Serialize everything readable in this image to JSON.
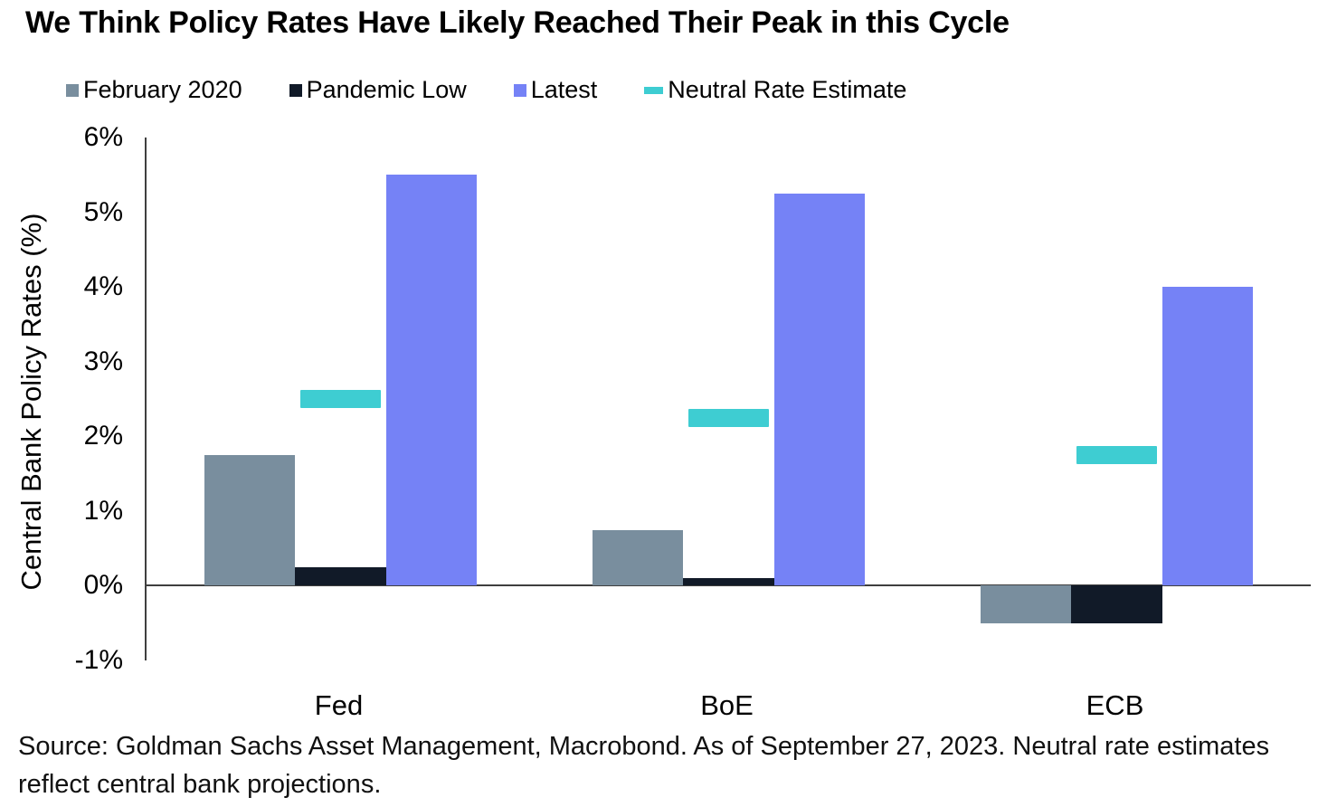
{
  "title": "We Think Policy Rates Have Likely Reached Their Peak in this Cycle",
  "source_note": "Source: Goldman Sachs Asset Management, Macrobond. As of September 27, 2023. Neutral rate estimates reflect central bank projections.",
  "colors": {
    "february_2020": "#798E9E",
    "pandemic_low": "#111A28",
    "latest": "#7582F6",
    "neutral_rate_estimate": "#3ECDD2",
    "axis": "#3f3f3f",
    "text": "#000000"
  },
  "chart_data": {
    "type": "bar",
    "categories": [
      "Fed",
      "BoE",
      "ECB"
    ],
    "series": [
      {
        "name": "February 2020",
        "render": "bar",
        "marker": "square",
        "color": "#798E9E",
        "values": [
          1.75,
          0.75,
          -0.5
        ]
      },
      {
        "name": "Pandemic Low",
        "render": "bar",
        "marker": "square",
        "color": "#111A28",
        "values": [
          0.25,
          0.1,
          -0.5
        ]
      },
      {
        "name": "Latest",
        "render": "bar",
        "marker": "square",
        "color": "#7582F6",
        "values": [
          5.5,
          5.25,
          4.0
        ]
      },
      {
        "name": "Neutral Rate Estimate",
        "render": "dash",
        "marker": "dash",
        "color": "#3ECDD2",
        "values": [
          2.5,
          2.25,
          1.75
        ]
      }
    ],
    "xlabel": "",
    "ylabel": "Central Bank Policy Rates (%)",
    "ylim": [
      -1,
      6
    ],
    "ytick_step": 1,
    "ytick_suffix": "%",
    "legend_position": "top-left",
    "grid": false,
    "bar_width_pct": 7.8,
    "dash_width_pct": 6.9
  }
}
